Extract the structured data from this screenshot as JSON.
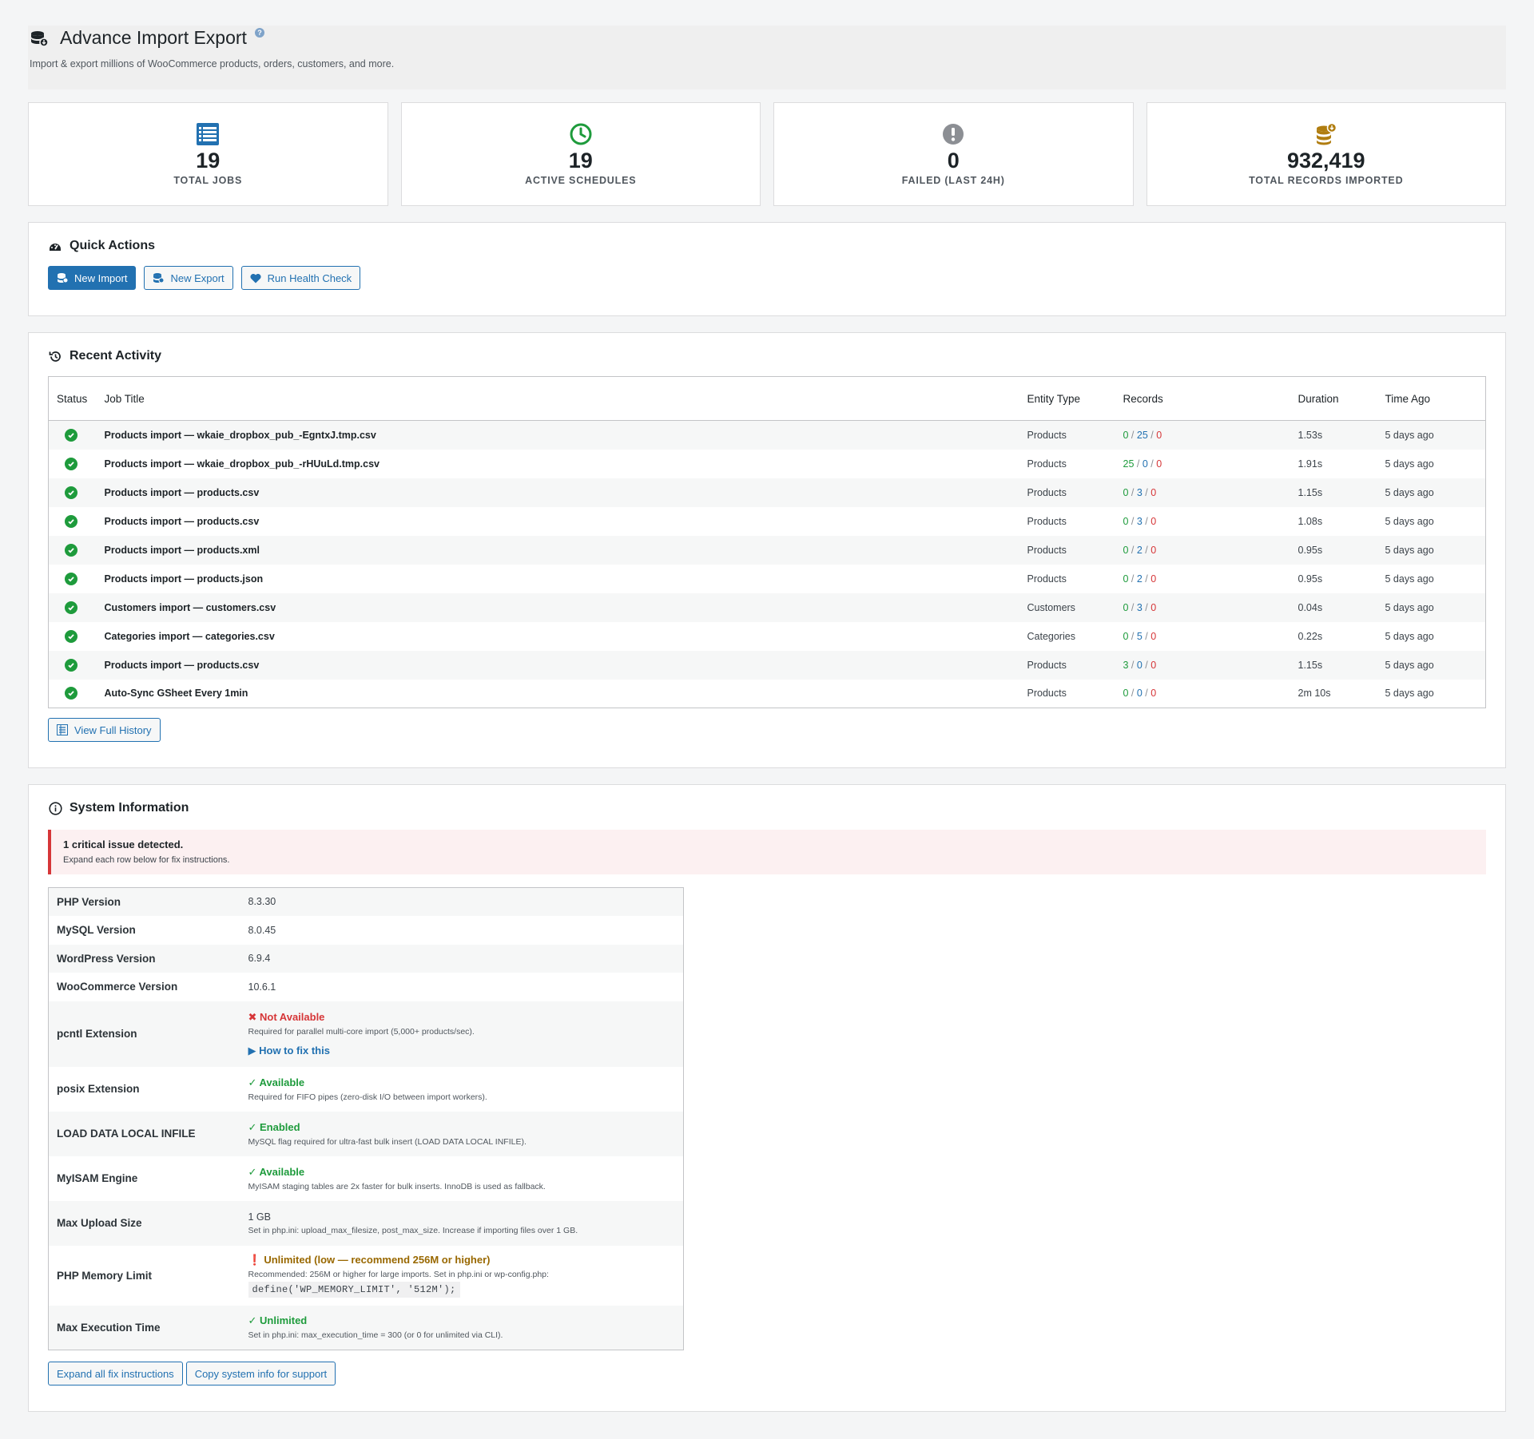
{
  "header": {
    "title": "Advance Import Export",
    "help": "?",
    "subtitle": "Import & export millions of WooCommerce products, orders, customers, and more."
  },
  "stats": [
    {
      "value": "19",
      "label": "TOTAL JOBS",
      "icon": "list-icon",
      "color": "#2271b1"
    },
    {
      "value": "19",
      "label": "ACTIVE SCHEDULES",
      "icon": "clock-icon",
      "color": "#1e9b3c"
    },
    {
      "value": "0",
      "label": "FAILED (LAST 24H)",
      "icon": "exclamation-icon",
      "color": "#8c8f94"
    },
    {
      "value": "932,419",
      "label": "TOTAL RECORDS IMPORTED",
      "icon": "coins-icon",
      "color": "#b07d10"
    }
  ],
  "quick_actions": {
    "title": "Quick Actions",
    "new_import": "New Import",
    "new_export": "New Export",
    "health_check": "Run Health Check"
  },
  "recent_activity": {
    "title": "Recent Activity",
    "columns": {
      "status": "Status",
      "job": "Job Title",
      "entity": "Entity Type",
      "records": "Records",
      "duration": "Duration",
      "time": "Time Ago"
    },
    "rows": [
      {
        "title": "Products import — wkaie_dropbox_pub_-EgntxJ.tmp.csv",
        "entity": "Products",
        "r1": "0",
        "r2": "25",
        "r3": "0",
        "duration": "1.53s",
        "time": "5 days ago"
      },
      {
        "title": "Products import — wkaie_dropbox_pub_-rHUuLd.tmp.csv",
        "entity": "Products",
        "r1": "25",
        "r2": "0",
        "r3": "0",
        "duration": "1.91s",
        "time": "5 days ago"
      },
      {
        "title": "Products import — products.csv",
        "entity": "Products",
        "r1": "0",
        "r2": "3",
        "r3": "0",
        "duration": "1.15s",
        "time": "5 days ago"
      },
      {
        "title": "Products import — products.csv",
        "entity": "Products",
        "r1": "0",
        "r2": "3",
        "r3": "0",
        "duration": "1.08s",
        "time": "5 days ago"
      },
      {
        "title": "Products import — products.xml",
        "entity": "Products",
        "r1": "0",
        "r2": "2",
        "r3": "0",
        "duration": "0.95s",
        "time": "5 days ago"
      },
      {
        "title": "Products import — products.json",
        "entity": "Products",
        "r1": "0",
        "r2": "2",
        "r3": "0",
        "duration": "0.95s",
        "time": "5 days ago"
      },
      {
        "title": "Customers import — customers.csv",
        "entity": "Customers",
        "r1": "0",
        "r2": "3",
        "r3": "0",
        "duration": "0.04s",
        "time": "5 days ago"
      },
      {
        "title": "Categories import — categories.csv",
        "entity": "Categories",
        "r1": "0",
        "r2": "5",
        "r3": "0",
        "duration": "0.22s",
        "time": "5 days ago"
      },
      {
        "title": "Products import — products.csv",
        "entity": "Products",
        "r1": "3",
        "r2": "0",
        "r3": "0",
        "duration": "1.15s",
        "time": "5 days ago"
      },
      {
        "title": "Auto-Sync GSheet Every 1min",
        "entity": "Products",
        "r1": "0",
        "r2": "0",
        "r3": "0",
        "duration": "2m 10s",
        "time": "5 days ago"
      }
    ],
    "view_history": "View Full History"
  },
  "system": {
    "title": "System Information",
    "alert_title": "1 critical issue detected.",
    "alert_sub": "Expand each row below for fix instructions.",
    "rows": {
      "php": {
        "label": "PHP Version",
        "value": "8.3.30"
      },
      "mysql": {
        "label": "MySQL Version",
        "value": "8.0.45"
      },
      "wp": {
        "label": "WordPress Version",
        "value": "6.9.4"
      },
      "wc": {
        "label": "WooCommerce Version",
        "value": "10.6.1"
      },
      "pcntl": {
        "label": "pcntl Extension",
        "status": "Not Available",
        "note": "Required for parallel multi-core import (5,000+ products/sec).",
        "fix": "How to fix this"
      },
      "posix": {
        "label": "posix Extension",
        "status": "Available",
        "note": "Required for FIFO pipes (zero-disk I/O between import workers)."
      },
      "load": {
        "label": "LOAD DATA LOCAL INFILE",
        "status": "Enabled",
        "note": "MySQL flag required for ultra-fast bulk insert (LOAD DATA LOCAL INFILE)."
      },
      "myisam": {
        "label": "MyISAM Engine",
        "status": "Available",
        "note": "MyISAM staging tables are 2x faster for bulk inserts. InnoDB is used as fallback."
      },
      "upload": {
        "label": "Max Upload Size",
        "value": "1 GB",
        "note": "Set in php.ini: upload_max_filesize, post_max_size. Increase if importing files over 1 GB."
      },
      "memory": {
        "label": "PHP Memory Limit",
        "status": "Unlimited (low — recommend 256M or higher)",
        "note": "Recommended: 256M or higher for large imports. Set in php.ini or wp-config.php:",
        "code": "define('WP_MEMORY_LIMIT', '512M');"
      },
      "exec": {
        "label": "Max Execution Time",
        "status": "Unlimited",
        "note": "Set in php.ini: max_execution_time = 300 (or 0 for unlimited via CLI)."
      }
    },
    "expand_all": "Expand all fix instructions",
    "copy_info": "Copy system info for support"
  }
}
